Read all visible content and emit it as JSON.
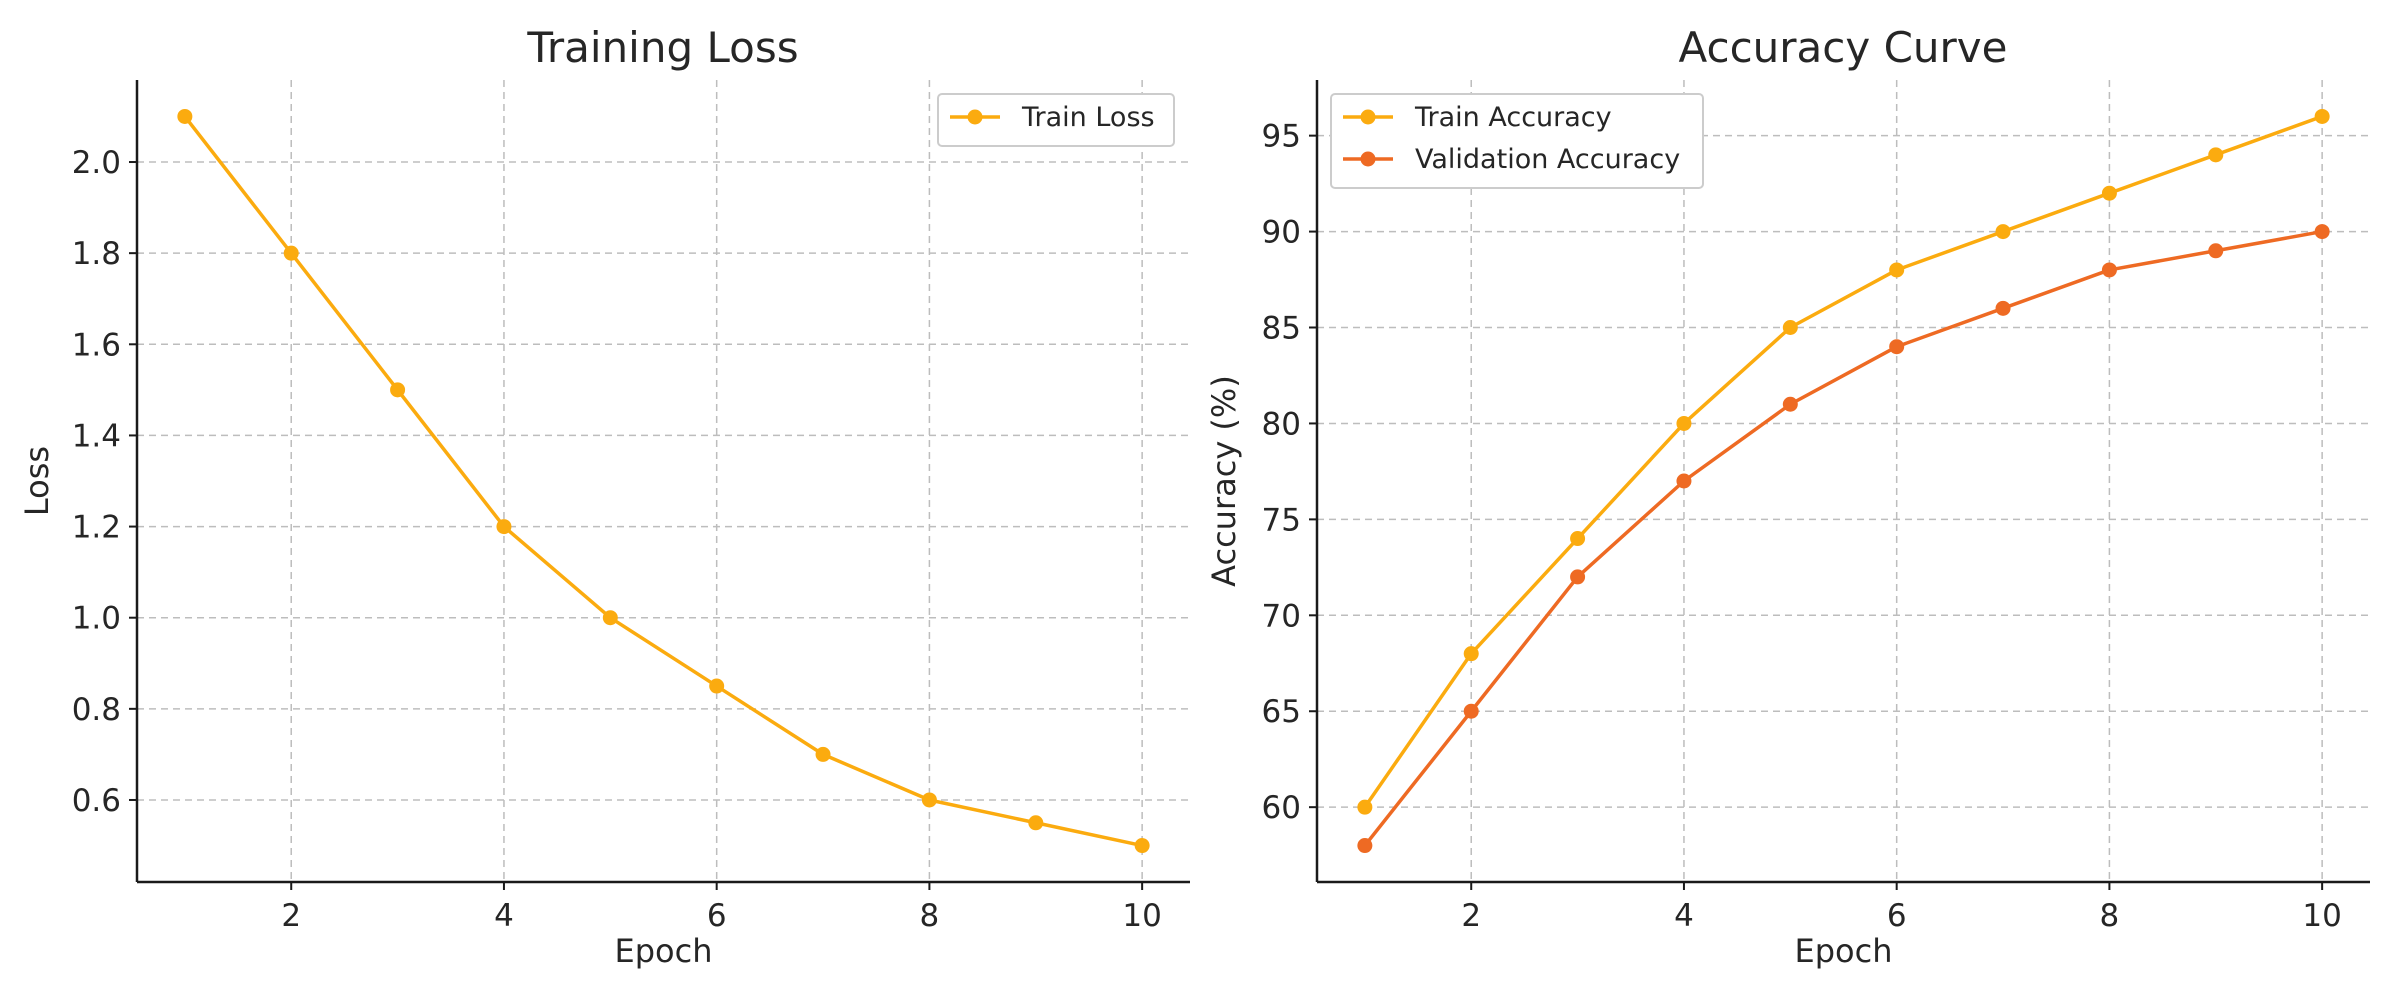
{
  "chart_data": [
    {
      "type": "line",
      "title": "Training Loss",
      "xlabel": "Epoch",
      "ylabel": "Loss",
      "x": [
        1,
        2,
        3,
        4,
        5,
        6,
        7,
        8,
        9,
        10
      ],
      "xlim": [
        0.55,
        10.45
      ],
      "ylim": [
        0.42,
        2.18
      ],
      "xticks": [
        2,
        4,
        6,
        8,
        10
      ],
      "xtick_labels": [
        "2",
        "4",
        "6",
        "8",
        "10"
      ],
      "yticks": [
        0.6,
        0.8,
        1.0,
        1.2,
        1.4,
        1.6,
        1.8,
        2.0
      ],
      "ytick_labels": [
        "0.6",
        "0.8",
        "1.0",
        "1.2",
        "1.4",
        "1.6",
        "1.8",
        "2.0"
      ],
      "grid": true,
      "legend_position": "top-right",
      "series": [
        {
          "name": "Train Loss",
          "color": "#fbab0f",
          "values": [
            2.1,
            1.8,
            1.5,
            1.2,
            1.0,
            0.85,
            0.7,
            0.6,
            0.55,
            0.5
          ]
        }
      ]
    },
    {
      "type": "line",
      "title": "Accuracy Curve",
      "xlabel": "Epoch",
      "ylabel": "Accuracy (%)",
      "x": [
        1,
        2,
        3,
        4,
        5,
        6,
        7,
        8,
        9,
        10
      ],
      "xlim": [
        0.55,
        10.45
      ],
      "ylim": [
        56.1,
        97.9
      ],
      "xticks": [
        2,
        4,
        6,
        8,
        10
      ],
      "xtick_labels": [
        "2",
        "4",
        "6",
        "8",
        "10"
      ],
      "yticks": [
        60,
        65,
        70,
        75,
        80,
        85,
        90,
        95
      ],
      "ytick_labels": [
        "60",
        "65",
        "70",
        "75",
        "80",
        "85",
        "90",
        "95"
      ],
      "grid": true,
      "legend_position": "top-left",
      "series": [
        {
          "name": "Train Accuracy",
          "color": "#fbab0f",
          "values": [
            60,
            68,
            74,
            80,
            85,
            88,
            90,
            92,
            94,
            96
          ]
        },
        {
          "name": "Validation Accuracy",
          "color": "#ee6a23",
          "values": [
            58,
            65,
            72,
            77,
            81,
            84,
            86,
            88,
            89,
            90
          ]
        }
      ]
    }
  ]
}
